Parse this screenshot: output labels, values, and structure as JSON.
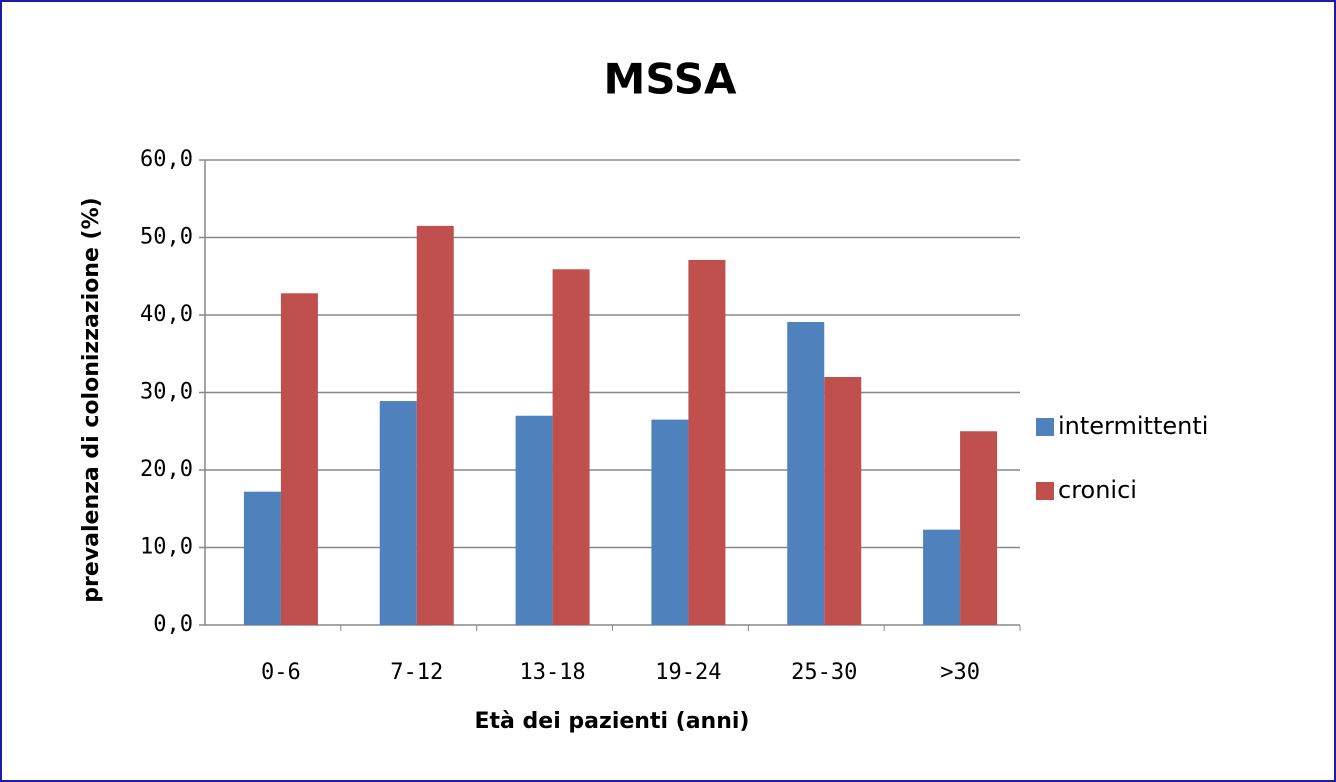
{
  "chart_data": {
    "type": "bar",
    "title": "MSSA",
    "x_label": "Età dei pazienti (anni)",
    "y_label": "prevalenza di colonizzazione (%)",
    "categories": [
      "0-6",
      "7-12",
      "13-18",
      "19-24",
      "25-30",
      ">30"
    ],
    "series": [
      {
        "name": "intermittenti",
        "color": "#4f81bd",
        "values": [
          17.2,
          28.9,
          27.0,
          26.5,
          39.1,
          12.3
        ]
      },
      {
        "name": "cronici",
        "color": "#c0504d",
        "values": [
          42.8,
          51.5,
          45.9,
          47.1,
          32.0,
          25.0
        ]
      }
    ],
    "ylim": [
      0,
      60
    ],
    "yticks": [
      {
        "value": 0,
        "label": "0,0"
      },
      {
        "value": 10,
        "label": "10,0"
      },
      {
        "value": 20,
        "label": "20,0"
      },
      {
        "value": 30,
        "label": "30,0"
      },
      {
        "value": 40,
        "label": "40,0"
      },
      {
        "value": 50,
        "label": "50,0"
      },
      {
        "value": 60,
        "label": "60,0"
      }
    ],
    "grid": true,
    "legend": "right"
  }
}
